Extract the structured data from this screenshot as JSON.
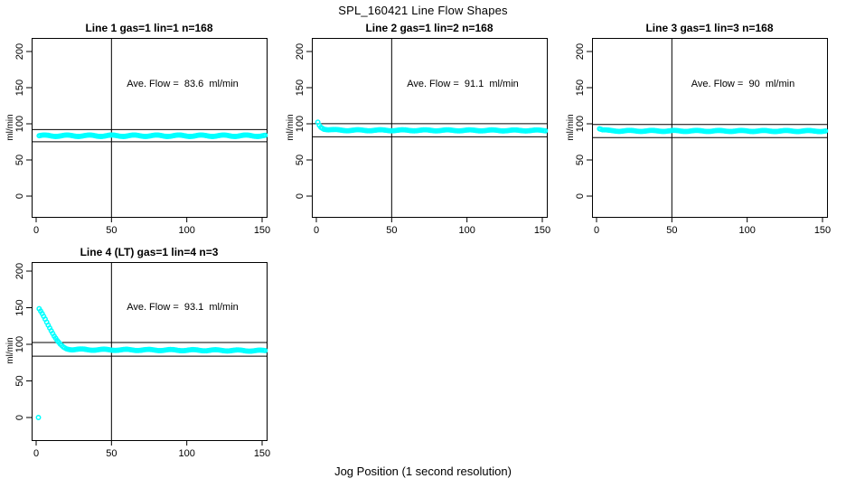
{
  "page": {
    "main_title": "SPL_160421  Line Flow Shapes",
    "x_axis_label": "Jog Position (1 second resolution)"
  },
  "colors": {
    "points": "#00ffff",
    "axis": "#000000",
    "text": "#000000",
    "background": "#ffffff"
  },
  "chart_data": [
    {
      "type": "scatter",
      "title": "Line 1 gas=1 lin=1 n=168",
      "annotation": "Ave. Flow =  83.6  ml/min",
      "ave_flow_ml_min": 83.6,
      "ylabel": "ml/min",
      "xticks": [
        0,
        50,
        100,
        150
      ],
      "yticks": [
        0,
        50,
        100,
        150,
        200
      ],
      "xlim": [
        0,
        153
      ],
      "ylim": [
        0,
        205
      ],
      "vline_x": 50,
      "hlines": [
        92.0,
        75.2
      ],
      "x_start": 2,
      "x_end": 152,
      "x_step": 1,
      "keypoints": [
        [
          2,
          83.5
        ],
        [
          152,
          83.5
        ]
      ],
      "jitter": 1.0,
      "extra_points": []
    },
    {
      "type": "scatter",
      "title": "Line 2 gas=1 lin=2 n=168",
      "annotation": "Ave. Flow =  91.1  ml/min",
      "ave_flow_ml_min": 91.1,
      "ylabel": "ml/min",
      "xticks": [
        0,
        50,
        100,
        150
      ],
      "yticks": [
        0,
        50,
        100,
        150,
        200
      ],
      "xlim": [
        0,
        153
      ],
      "ylim": [
        0,
        205
      ],
      "vline_x": 50,
      "hlines": [
        100.2,
        82.0
      ],
      "x_start": 1,
      "x_end": 152,
      "x_step": 1,
      "keypoints": [
        [
          1,
          102
        ],
        [
          2,
          98
        ],
        [
          3,
          95.5
        ],
        [
          5,
          93.2
        ],
        [
          8,
          92
        ],
        [
          12,
          91.4
        ],
        [
          20,
          91.1
        ],
        [
          152,
          90.8
        ]
      ],
      "jitter": 0.7,
      "extra_points": []
    },
    {
      "type": "scatter",
      "title": "Line 3 gas=1 lin=3 n=168",
      "annotation": "Ave. Flow =  90  ml/min",
      "ave_flow_ml_min": 90,
      "ylabel": "ml/min",
      "xticks": [
        0,
        50,
        100,
        150
      ],
      "yticks": [
        0,
        50,
        100,
        150,
        200
      ],
      "xlim": [
        0,
        153
      ],
      "ylim": [
        0,
        205
      ],
      "vline_x": 50,
      "hlines": [
        99.0,
        81.0
      ],
      "x_start": 2,
      "x_end": 152,
      "x_step": 1,
      "keypoints": [
        [
          2,
          93.5
        ],
        [
          4,
          91.5
        ],
        [
          8,
          90.6
        ],
        [
          15,
          90.2
        ],
        [
          152,
          90
        ]
      ],
      "jitter": 0.7,
      "extra_points": []
    },
    {
      "type": "scatter",
      "title": "Line 4 (LT) gas=1 lin=4 n=3",
      "annotation": "Ave. Flow =  93.1  ml/min",
      "ave_flow_ml_min": 93.1,
      "ylabel": "ml/min",
      "xticks": [
        0,
        50,
        100,
        150
      ],
      "yticks": [
        0,
        50,
        100,
        150,
        200
      ],
      "xlim": [
        0,
        153
      ],
      "ylim": [
        0,
        205
      ],
      "vline_x": 50,
      "hlines": [
        102.4,
        83.8
      ],
      "x_start": 2,
      "x_end": 152,
      "x_step": 1,
      "keypoints": [
        [
          2,
          148
        ],
        [
          4,
          142
        ],
        [
          6,
          135
        ],
        [
          8,
          127
        ],
        [
          10,
          119
        ],
        [
          12,
          111
        ],
        [
          14,
          104.5
        ],
        [
          16,
          99.5
        ],
        [
          18,
          96
        ],
        [
          20,
          94.2
        ],
        [
          24,
          93
        ],
        [
          40,
          92.6
        ],
        [
          80,
          92.2
        ],
        [
          120,
          91.8
        ],
        [
          152,
          91.2
        ]
      ],
      "jitter": 0.8,
      "extra_points": [
        [
          1.5,
          0
        ]
      ]
    }
  ]
}
